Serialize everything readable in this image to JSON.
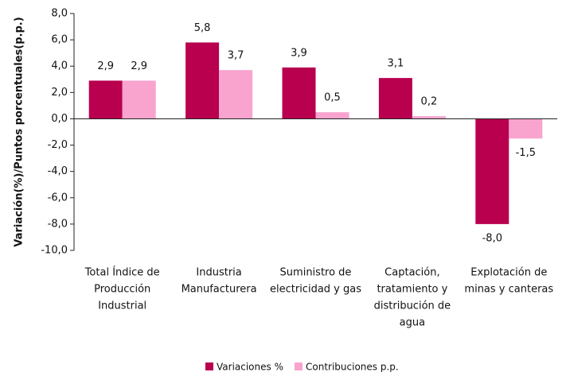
{
  "chart_data": {
    "type": "bar",
    "ylabel": "Variación(%)/Puntos porcentuales(p.p.)",
    "categories": [
      [
        "Total Índice de",
        "Producción",
        "Industrial"
      ],
      [
        "Industria",
        "Manufacturera"
      ],
      [
        "Suministro de",
        "electricidad y gas"
      ],
      [
        "Captación,",
        "tratamiento y",
        "distribución de",
        "agua"
      ],
      [
        "Explotación de",
        "minas y canteras"
      ]
    ],
    "series": [
      {
        "name": "Variaciones %",
        "color": "#b8004f",
        "values": [
          2.9,
          5.8,
          3.9,
          3.1,
          -8.0
        ],
        "value_labels": [
          "2,9",
          "5,8",
          "3,9",
          "3,1",
          "-8,0"
        ]
      },
      {
        "name": "Contribuciones p.p.",
        "color": "#f9a3cf",
        "values": [
          2.9,
          3.7,
          0.5,
          0.2,
          -1.5
        ],
        "value_labels": [
          "2,9",
          "3,7",
          "0,5",
          "0,2",
          "-1,5"
        ]
      }
    ],
    "ylim": [
      -10,
      8
    ],
    "yticks": [
      {
        "value": 8,
        "label": "8,0"
      },
      {
        "value": 6,
        "label": "6,0"
      },
      {
        "value": 4,
        "label": "4,0"
      },
      {
        "value": 2,
        "label": "2,0"
      },
      {
        "value": 0,
        "label": "0,0"
      },
      {
        "value": -2,
        "label": "-2,0"
      },
      {
        "value": -4,
        "label": "-4,0"
      },
      {
        "value": -6,
        "label": "-6,0"
      },
      {
        "value": -8,
        "label": "-8,0"
      },
      {
        "value": -10,
        "label": "-10,0"
      }
    ],
    "legend": "bottom"
  }
}
